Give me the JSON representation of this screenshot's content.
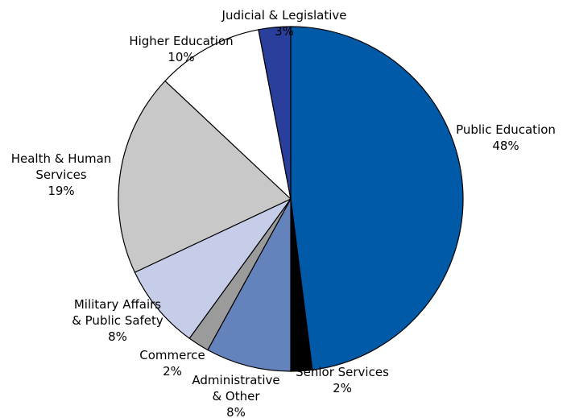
{
  "chart_data": {
    "type": "pie",
    "start_angle_deg": 0,
    "direction": "clockwise",
    "legend": "none",
    "slices": [
      {
        "name": "Public Education",
        "value": 48,
        "value_label": "48%",
        "label_lines": [
          "Public Education",
          "48%"
        ],
        "color": "#005aa8"
      },
      {
        "name": "Senior Services",
        "value": 2,
        "value_label": "2%",
        "label_lines": [
          "Senior Services",
          "2%"
        ],
        "color": "#000000"
      },
      {
        "name": "Administrative & Other",
        "value": 8,
        "value_label": "8%",
        "label_lines": [
          "Administrative",
          "& Other",
          "8%"
        ],
        "color": "#6483bd"
      },
      {
        "name": "Commerce",
        "value": 2,
        "value_label": "2%",
        "label_lines": [
          "Commerce",
          "2%"
        ],
        "color": "#9b9b9b"
      },
      {
        "name": "Military Affairs & Public Safety",
        "value": 8,
        "value_label": "8%",
        "label_lines": [
          "Military Affairs",
          "& Public Safety",
          "8%"
        ],
        "color": "#c5cde8"
      },
      {
        "name": "Health & Human Services",
        "value": 19,
        "value_label": "19%",
        "label_lines": [
          "Health & Human",
          "Services",
          "19%"
        ],
        "color": "#c8c8c8"
      },
      {
        "name": "Higher Education",
        "value": 10,
        "value_label": "10%",
        "label_lines": [
          "Higher Education",
          "10%"
        ],
        "color": "#ffffff"
      },
      {
        "name": "Judicial & Legislative",
        "value": 3,
        "value_label": "3%",
        "label_lines": [
          "Judicial & Legislative",
          "3%"
        ],
        "color": "#2a3f9c"
      }
    ]
  }
}
